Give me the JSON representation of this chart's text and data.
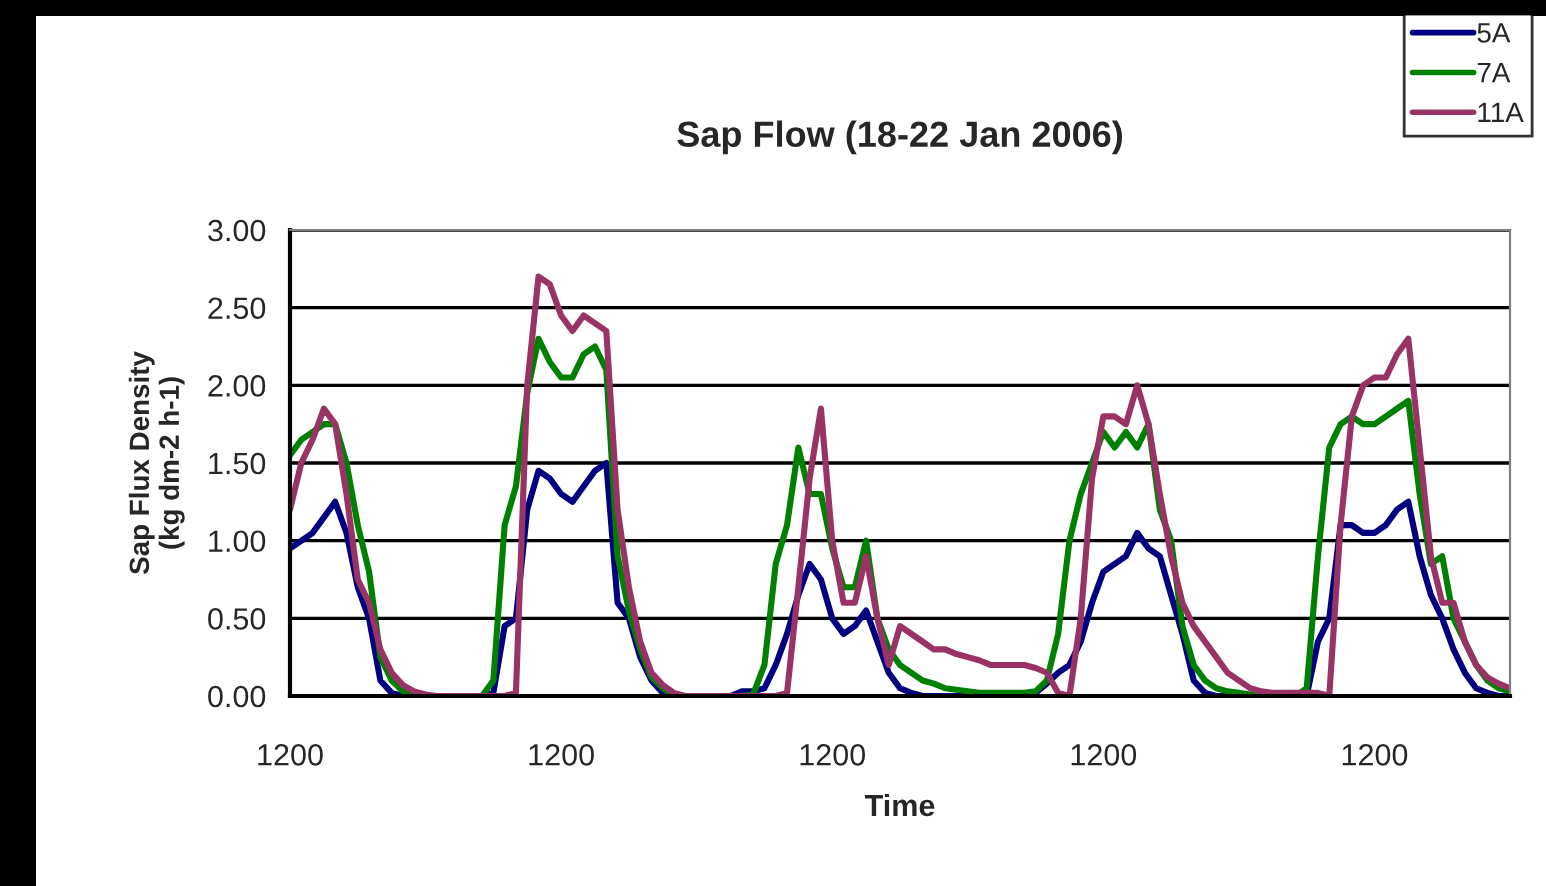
{
  "chart_data": {
    "type": "line",
    "title": "Sap Flow (18-22 Jan 2006)",
    "xlabel": "Time",
    "ylabel": "Sap Flux Density\n(kg dm-2 h-1)",
    "ylim": [
      0,
      3
    ],
    "yticks": [
      {
        "value": 0,
        "label": "0.00"
      },
      {
        "value": 0.5,
        "label": "0.50"
      },
      {
        "value": 1,
        "label": "1.00"
      },
      {
        "value": 1.5,
        "label": "1.50"
      },
      {
        "value": 2,
        "label": "2.00"
      },
      {
        "value": 2.5,
        "label": "2.50"
      },
      {
        "value": 3,
        "label": "3.00"
      }
    ],
    "categories": [
      "1200",
      null,
      null,
      null,
      null,
      null,
      null,
      null,
      null,
      null,
      null,
      null,
      null,
      null,
      null,
      null,
      null,
      null,
      null,
      null,
      null,
      null,
      null,
      null,
      "1200",
      null,
      null,
      null,
      null,
      null,
      null,
      null,
      null,
      null,
      null,
      null,
      null,
      null,
      null,
      null,
      null,
      null,
      null,
      null,
      null,
      null,
      null,
      null,
      "1200",
      null,
      null,
      null,
      null,
      null,
      null,
      null,
      null,
      null,
      null,
      null,
      null,
      null,
      null,
      null,
      null,
      null,
      null,
      null,
      null,
      null,
      null,
      null,
      "1200",
      null,
      null,
      null,
      null,
      null,
      null,
      null,
      null,
      null,
      null,
      null,
      null,
      null,
      null,
      null,
      null,
      null,
      null,
      null,
      null,
      null,
      null,
      null,
      "1200",
      null,
      null,
      null,
      null,
      null,
      null,
      null,
      null,
      null,
      null,
      null,
      null
    ],
    "grid": "y",
    "legend": "top right",
    "line_style": "solid",
    "series": [
      {
        "name": "5A",
        "color": "#000080",
        "values": [
          0.95,
          1.0,
          1.05,
          1.15,
          1.25,
          1.05,
          0.7,
          0.5,
          0.1,
          0.02,
          0,
          0,
          0,
          0,
          0,
          0,
          0,
          0,
          0.02,
          0.45,
          0.5,
          1.2,
          1.45,
          1.4,
          1.3,
          1.25,
          1.35,
          1.45,
          1.5,
          0.6,
          0.5,
          0.25,
          0.1,
          0.02,
          0,
          0,
          0,
          0,
          0,
          0,
          0.03,
          0.03,
          0.05,
          0.2,
          0.4,
          0.65,
          0.85,
          0.75,
          0.5,
          0.4,
          0.45,
          0.55,
          0.35,
          0.15,
          0.05,
          0.02,
          0,
          0,
          0,
          0,
          0,
          0,
          0,
          0,
          0,
          0,
          0.02,
          0.08,
          0.15,
          0.2,
          0.35,
          0.6,
          0.8,
          0.85,
          0.9,
          1.05,
          0.95,
          0.9,
          0.65,
          0.4,
          0.1,
          0.02,
          0,
          0,
          0,
          0,
          0,
          0,
          0,
          0,
          0,
          0.35,
          0.5,
          1.1,
          1.1,
          1.05,
          1.05,
          1.1,
          1.2,
          1.25,
          0.9,
          0.65,
          0.5,
          0.3,
          0.15,
          0.05,
          0.02,
          0,
          0
        ]
      },
      {
        "name": "7A",
        "color": "#008000",
        "values": [
          1.55,
          1.65,
          1.7,
          1.75,
          1.75,
          1.5,
          1.1,
          0.8,
          0.25,
          0.1,
          0.03,
          0.01,
          0,
          0,
          0,
          0,
          0,
          0,
          0.1,
          1.1,
          1.35,
          1.95,
          2.3,
          2.15,
          2.05,
          2.05,
          2.2,
          2.25,
          2.1,
          0.9,
          0.55,
          0.3,
          0.12,
          0.05,
          0,
          0,
          0,
          0,
          0,
          0,
          0,
          0.01,
          0.2,
          0.85,
          1.1,
          1.6,
          1.3,
          1.3,
          0.95,
          0.7,
          0.7,
          1.0,
          0.5,
          0.3,
          0.2,
          0.15,
          0.1,
          0.08,
          0.05,
          0.04,
          0.03,
          0.02,
          0.02,
          0.02,
          0.02,
          0.02,
          0.03,
          0.1,
          0.4,
          1.0,
          1.3,
          1.5,
          1.7,
          1.6,
          1.7,
          1.6,
          1.75,
          1.2,
          1.0,
          0.45,
          0.2,
          0.1,
          0.05,
          0.03,
          0.02,
          0.01,
          0,
          0,
          0,
          0,
          0.05,
          0.9,
          1.6,
          1.75,
          1.8,
          1.75,
          1.75,
          1.8,
          1.85,
          1.9,
          1.3,
          0.85,
          0.9,
          0.5,
          0.35,
          0.2,
          0.1,
          0.05,
          0.03
        ]
      },
      {
        "name": "11A",
        "color": "#993366",
        "values": [
          1.2,
          1.5,
          1.65,
          1.85,
          1.75,
          1.3,
          0.75,
          0.6,
          0.3,
          0.15,
          0.07,
          0.03,
          0.01,
          0,
          0,
          0,
          0,
          0,
          0,
          0,
          0.02,
          2.0,
          2.7,
          2.65,
          2.45,
          2.35,
          2.45,
          2.4,
          2.35,
          1.2,
          0.7,
          0.35,
          0.15,
          0.07,
          0.02,
          0,
          0,
          0,
          0,
          0,
          0,
          0,
          0,
          0,
          0.02,
          0.7,
          1.4,
          1.85,
          1.0,
          0.6,
          0.6,
          0.9,
          0.5,
          0.2,
          0.45,
          0.4,
          0.35,
          0.3,
          0.3,
          0.27,
          0.25,
          0.23,
          0.2,
          0.2,
          0.2,
          0.2,
          0.18,
          0.15,
          0.02,
          0,
          0.5,
          1.4,
          1.8,
          1.8,
          1.75,
          2.0,
          1.75,
          1.3,
          0.9,
          0.6,
          0.45,
          0.35,
          0.25,
          0.15,
          0.1,
          0.05,
          0.03,
          0.02,
          0.02,
          0.02,
          0.02,
          0.02,
          0,
          1.1,
          1.8,
          2.0,
          2.05,
          2.05,
          2.2,
          2.3,
          1.6,
          0.9,
          0.6,
          0.6,
          0.35,
          0.2,
          0.12,
          0.08,
          0.05
        ]
      }
    ]
  }
}
